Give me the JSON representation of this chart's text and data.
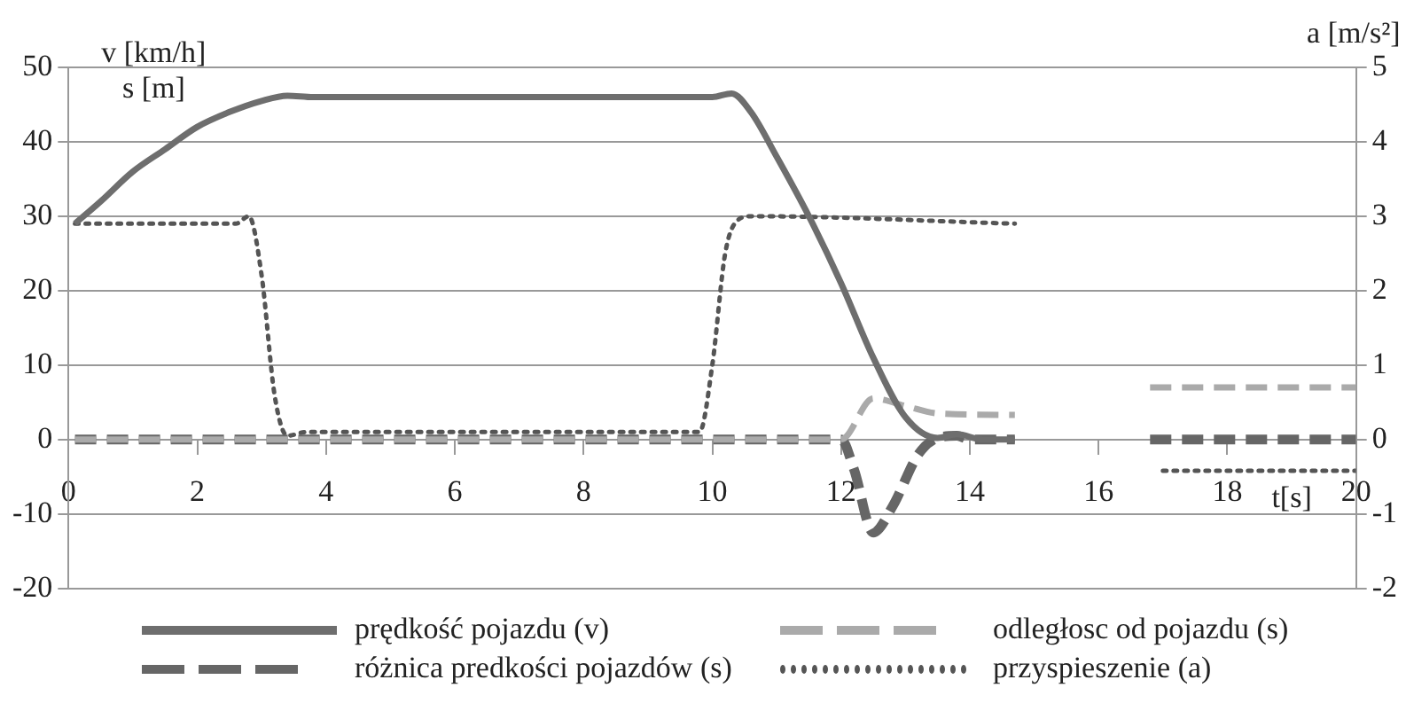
{
  "chart_data": {
    "type": "line",
    "xlabel": "t[s]",
    "ylabel": "v [km/h]\ns [m]",
    "y2label": "a [m/s²]",
    "xlim": [
      0,
      20
    ],
    "xticks": [
      0,
      2,
      4,
      6,
      8,
      10,
      12,
      14,
      16,
      18,
      20
    ],
    "ylim": [
      -20,
      50
    ],
    "yticks": [
      -20,
      -10,
      0,
      10,
      20,
      30,
      40,
      50
    ],
    "y2lim": [
      -2,
      5
    ],
    "y2ticks": [
      -2,
      -1,
      0,
      1,
      2,
      3,
      4,
      5
    ],
    "grid": "y",
    "legend": "bottom",
    "marker": "none",
    "series": [
      {
        "name": "prędkość pojazdu (v)",
        "color": "#6e6e6e",
        "line_style": "solid",
        "x": [
          0.1,
          0.5,
          1,
          1.5,
          2,
          2.5,
          3,
          3.4,
          3.8,
          10,
          10.3,
          10.6,
          11,
          11.5,
          12,
          12.5,
          13,
          13.5,
          13.8,
          14.2,
          14.7
        ],
        "values": [
          29,
          32,
          36,
          39,
          42,
          44,
          45.5,
          46.2,
          46,
          46,
          46.5,
          44,
          38,
          30,
          21,
          11,
          3,
          0.2,
          0.7,
          0,
          0
        ]
      },
      {
        "name": "odległosc od pojazdu (s)",
        "color": "#aaaaaa",
        "line_style": "dashed",
        "x": [
          0.1,
          12,
          12.5,
          13,
          13.5,
          14.7
        ],
        "values": [
          0,
          0,
          5.5,
          4.5,
          3.5,
          3.3
        ]
      },
      {
        "name": "różnica predkości pojazdów (s)",
        "color": "#666666",
        "line_style": "dashed",
        "x": [
          0.1,
          12,
          12.2,
          12.5,
          12.8,
          13.2,
          13.5,
          13.8,
          14,
          14.7
        ],
        "values": [
          0,
          0,
          -4,
          -12.5,
          -9,
          -2,
          0.2,
          0.5,
          0,
          0
        ]
      },
      {
        "name": "przyspieszenie (a)",
        "color": "#555555",
        "line_style": "dotted",
        "axis": "y2",
        "x": [
          0.1,
          2.6,
          2.8,
          3,
          3.2,
          3.4,
          3.7,
          9.8,
          10,
          10.2,
          10.4,
          10.6,
          14.7
        ],
        "values": [
          2.9,
          2.9,
          3,
          2.2,
          0.6,
          0.05,
          0.1,
          0.1,
          1,
          2.5,
          2.95,
          3,
          2.9
        ]
      },
      {
        "color": "#aaaaaa",
        "line_style": "dashed",
        "x": [
          16.8,
          20
        ],
        "values": [
          7,
          7
        ]
      },
      {
        "color": "#666666",
        "line_style": "dashed",
        "x": [
          16.8,
          20
        ],
        "values": [
          0,
          0
        ]
      },
      {
        "color": "#555555",
        "line_style": "dotted",
        "axis": "y2",
        "x": [
          17,
          20
        ],
        "values": [
          -0.42,
          -0.42
        ]
      }
    ]
  }
}
